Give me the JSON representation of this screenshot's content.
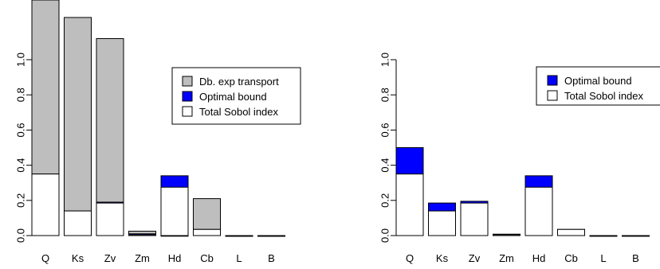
{
  "colors": {
    "db_exp_transport": "#bebebe",
    "optimal_bound": "#0000ff",
    "total_sobol": "#ffffff",
    "stroke": "#000000"
  },
  "chart_data": [
    {
      "type": "bar",
      "stacking": "overlay",
      "title": "",
      "xlabel": "",
      "ylabel": "",
      "categories": [
        "Q",
        "Ks",
        "Zv",
        "Zm",
        "Hd",
        "Cb",
        "L",
        "B"
      ],
      "y_ticks": [
        "0.0",
        "0.2",
        "0.4",
        "0.6",
        "0.8",
        "1.0"
      ],
      "ylim": [
        0,
        1.33
      ],
      "series": [
        {
          "name": "Db. exp transport",
          "color_key": "db_exp_transport",
          "values": [
            1.38,
            1.24,
            1.12,
            0.025,
            0.0,
            0.21,
            0.0,
            0.0
          ]
        },
        {
          "name": "Optimal bound",
          "color_key": "optimal_bound",
          "values": [
            0.35,
            0.14,
            0.19,
            0.01,
            0.34,
            0.035,
            0.0,
            0.0
          ]
        },
        {
          "name": "Total Sobol index",
          "color_key": "total_sobol",
          "values": [
            0.35,
            0.14,
            0.185,
            0.005,
            0.275,
            0.035,
            0.0,
            0.0
          ]
        }
      ],
      "legend": {
        "placement": "right",
        "entries": [
          "Db. exp transport",
          "Optimal bound",
          "Total Sobol index"
        ]
      },
      "grid": false
    },
    {
      "type": "bar",
      "stacking": "overlay",
      "title": "",
      "xlabel": "",
      "ylabel": "",
      "categories": [
        "Q",
        "Ks",
        "Zv",
        "Zm",
        "Hd",
        "Cb",
        "L",
        "B"
      ],
      "y_ticks": [
        "0.0",
        "0.2",
        "0.4",
        "0.6",
        "0.8",
        "1.0"
      ],
      "ylim": [
        0,
        1.33
      ],
      "series": [
        {
          "name": "Optimal bound",
          "color_key": "optimal_bound",
          "values": [
            0.5,
            0.185,
            0.195,
            0.008,
            0.34,
            0.035,
            0.0,
            0.0
          ]
        },
        {
          "name": "Total Sobol index",
          "color_key": "total_sobol",
          "values": [
            0.35,
            0.14,
            0.185,
            0.005,
            0.275,
            0.035,
            0.0,
            0.0
          ]
        }
      ],
      "legend": {
        "placement": "top-right",
        "entries": [
          "Optimal bound",
          "Total Sobol index"
        ]
      },
      "grid": false
    }
  ]
}
